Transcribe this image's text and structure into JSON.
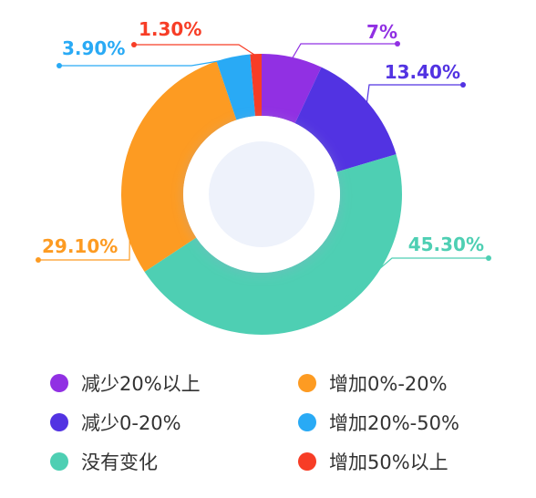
{
  "chart_data": {
    "type": "pie",
    "variant": "donut",
    "title": "",
    "labels": [
      "减少20%以上",
      "减少0-20%",
      "没有变化",
      "增加0%-20%",
      "增加20%-50%",
      "增加50%以上"
    ],
    "values": [
      7,
      13.4,
      45.3,
      29.1,
      3.9,
      1.3
    ],
    "value_labels": [
      "7%",
      "13.40%",
      "45.30%",
      "29.10%",
      "3.90%",
      "1.30%"
    ],
    "colors": [
      "#9130e3",
      "#5233e2",
      "#4ecfb3",
      "#fd9b22",
      "#29aaf5",
      "#f73d26"
    ],
    "legend_position": "bottom"
  },
  "legend": [
    {
      "label": "减少20%以上",
      "color": "#9130e3"
    },
    {
      "label": "增加0%-20%",
      "color": "#fd9b22"
    },
    {
      "label": "减少0-20%",
      "color": "#5233e2"
    },
    {
      "label": "增加20%-50%",
      "color": "#29aaf5"
    },
    {
      "label": "没有变化",
      "color": "#4ecfb3"
    },
    {
      "label": "增加50%以上",
      "color": "#f73d26"
    }
  ]
}
